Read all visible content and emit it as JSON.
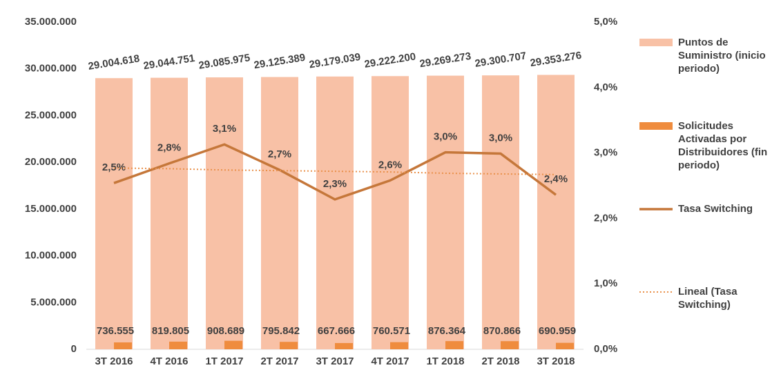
{
  "chart_data": {
    "type": "bar-line",
    "categories": [
      "3T 2016",
      "4T 2016",
      "1T 2017",
      "2T 2017",
      "3T 2017",
      "4T 2017",
      "1T 2018",
      "2T 2018",
      "3T 2018"
    ],
    "series": [
      {
        "name": "Puntos de Suministro (inicio periodo)",
        "color": "#f8c1a6",
        "kind": "bar",
        "values": [
          29004618,
          29044751,
          29085975,
          29125389,
          29179039,
          29222200,
          29269273,
          29300707,
          29353276
        ],
        "value_labels": [
          "29.004.618",
          "29.044.751",
          "29.085.975",
          "29.125.389",
          "29.179.039",
          "29.222.200",
          "29.269.273",
          "29.300.707",
          "29.353.276"
        ]
      },
      {
        "name": "Solicitudes Activadas por Distribuidores (fin periodo)",
        "color": "#ef8c3e",
        "kind": "bar",
        "values": [
          736555,
          819805,
          908689,
          795842,
          667666,
          760571,
          876364,
          870866,
          690959
        ],
        "value_labels": [
          "736.555",
          "819.805",
          "908.689",
          "795.842",
          "667.666",
          "760.571",
          "876.364",
          "870.866",
          "690.959"
        ]
      },
      {
        "name": "Tasa Switching",
        "color": "#c5773a",
        "kind": "line",
        "axis": "y2",
        "values": [
          2.54,
          2.84,
          3.13,
          2.74,
          2.29,
          2.58,
          3.01,
          2.99,
          2.36
        ],
        "value_labels": [
          "2,5%",
          "2,8%",
          "3,1%",
          "2,7%",
          "2,3%",
          "2,6%",
          "3,0%",
          "3,0%",
          "2,4%"
        ]
      },
      {
        "name": "Lineal (Tasa Switching)",
        "color": "#e9904a",
        "kind": "dotted",
        "axis": "y2",
        "values": [
          2.77,
          2.76,
          2.74,
          2.73,
          2.72,
          2.71,
          2.69,
          2.68,
          2.67
        ]
      }
    ],
    "ylim": [
      0,
      35000000
    ],
    "yticks": [
      {
        "value": 0,
        "label": "0"
      },
      {
        "value": 5000000,
        "label": "5.000.000"
      },
      {
        "value": 10000000,
        "label": "10.000.000"
      },
      {
        "value": 15000000,
        "label": "15.000.000"
      },
      {
        "value": 20000000,
        "label": "20.000.000"
      },
      {
        "value": 25000000,
        "label": "25.000.000"
      },
      {
        "value": 30000000,
        "label": "30.000.000"
      },
      {
        "value": 35000000,
        "label": "35.000.000"
      }
    ],
    "y2lim": [
      0,
      5
    ],
    "y2ticks": [
      {
        "value": 0,
        "label": "0,0%"
      },
      {
        "value": 1,
        "label": "1,0%"
      },
      {
        "value": 2,
        "label": "2,0%"
      },
      {
        "value": 3,
        "label": "3,0%"
      },
      {
        "value": 4,
        "label": "4,0%"
      },
      {
        "value": 5,
        "label": "5,0%"
      }
    ],
    "grid": false,
    "legend": "right"
  }
}
